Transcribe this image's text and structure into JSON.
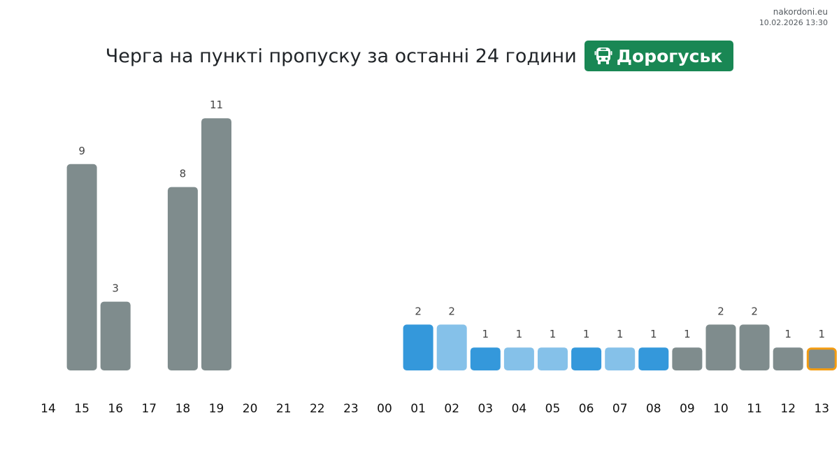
{
  "header": {
    "title": "Черга на пункті пропуску за останні 24 години",
    "checkpoint": "Дорогуськ",
    "checkpoint_icon": "bus-icon",
    "badge_color": "#198754"
  },
  "source": {
    "site": "nakordoni.eu",
    "timestamp": "10.02.2026 13:30"
  },
  "colors": {
    "gray": "#7f8c8d",
    "blue": "#3498db",
    "lightblue": "#85c1e9",
    "highlight": "#f39c12",
    "value_label": "#444444",
    "tick_label": "#111111"
  },
  "chart_data": {
    "type": "bar",
    "title": "Черга на пункті пропуску за останні 24 години",
    "xlabel": "",
    "ylabel": "",
    "grid": false,
    "legend": "none",
    "ylim": [
      0,
      11
    ],
    "categories": [
      "14",
      "15",
      "16",
      "17",
      "18",
      "19",
      "20",
      "21",
      "22",
      "23",
      "00",
      "01",
      "02",
      "03",
      "04",
      "05",
      "06",
      "07",
      "08",
      "09",
      "10",
      "11",
      "12",
      "13"
    ],
    "values": [
      null,
      9,
      3,
      null,
      8,
      11,
      null,
      null,
      null,
      null,
      null,
      2,
      2,
      1,
      1,
      1,
      1,
      1,
      1,
      1,
      2,
      2,
      1,
      1
    ],
    "bar_colors": [
      "gray",
      "gray",
      "gray",
      "gray",
      "gray",
      "gray",
      "gray",
      "gray",
      "gray",
      "gray",
      "gray",
      "blue",
      "lightblue",
      "blue",
      "lightblue",
      "lightblue",
      "blue",
      "lightblue",
      "blue",
      "gray",
      "gray",
      "gray",
      "gray",
      "gray"
    ],
    "highlighted": "13"
  }
}
